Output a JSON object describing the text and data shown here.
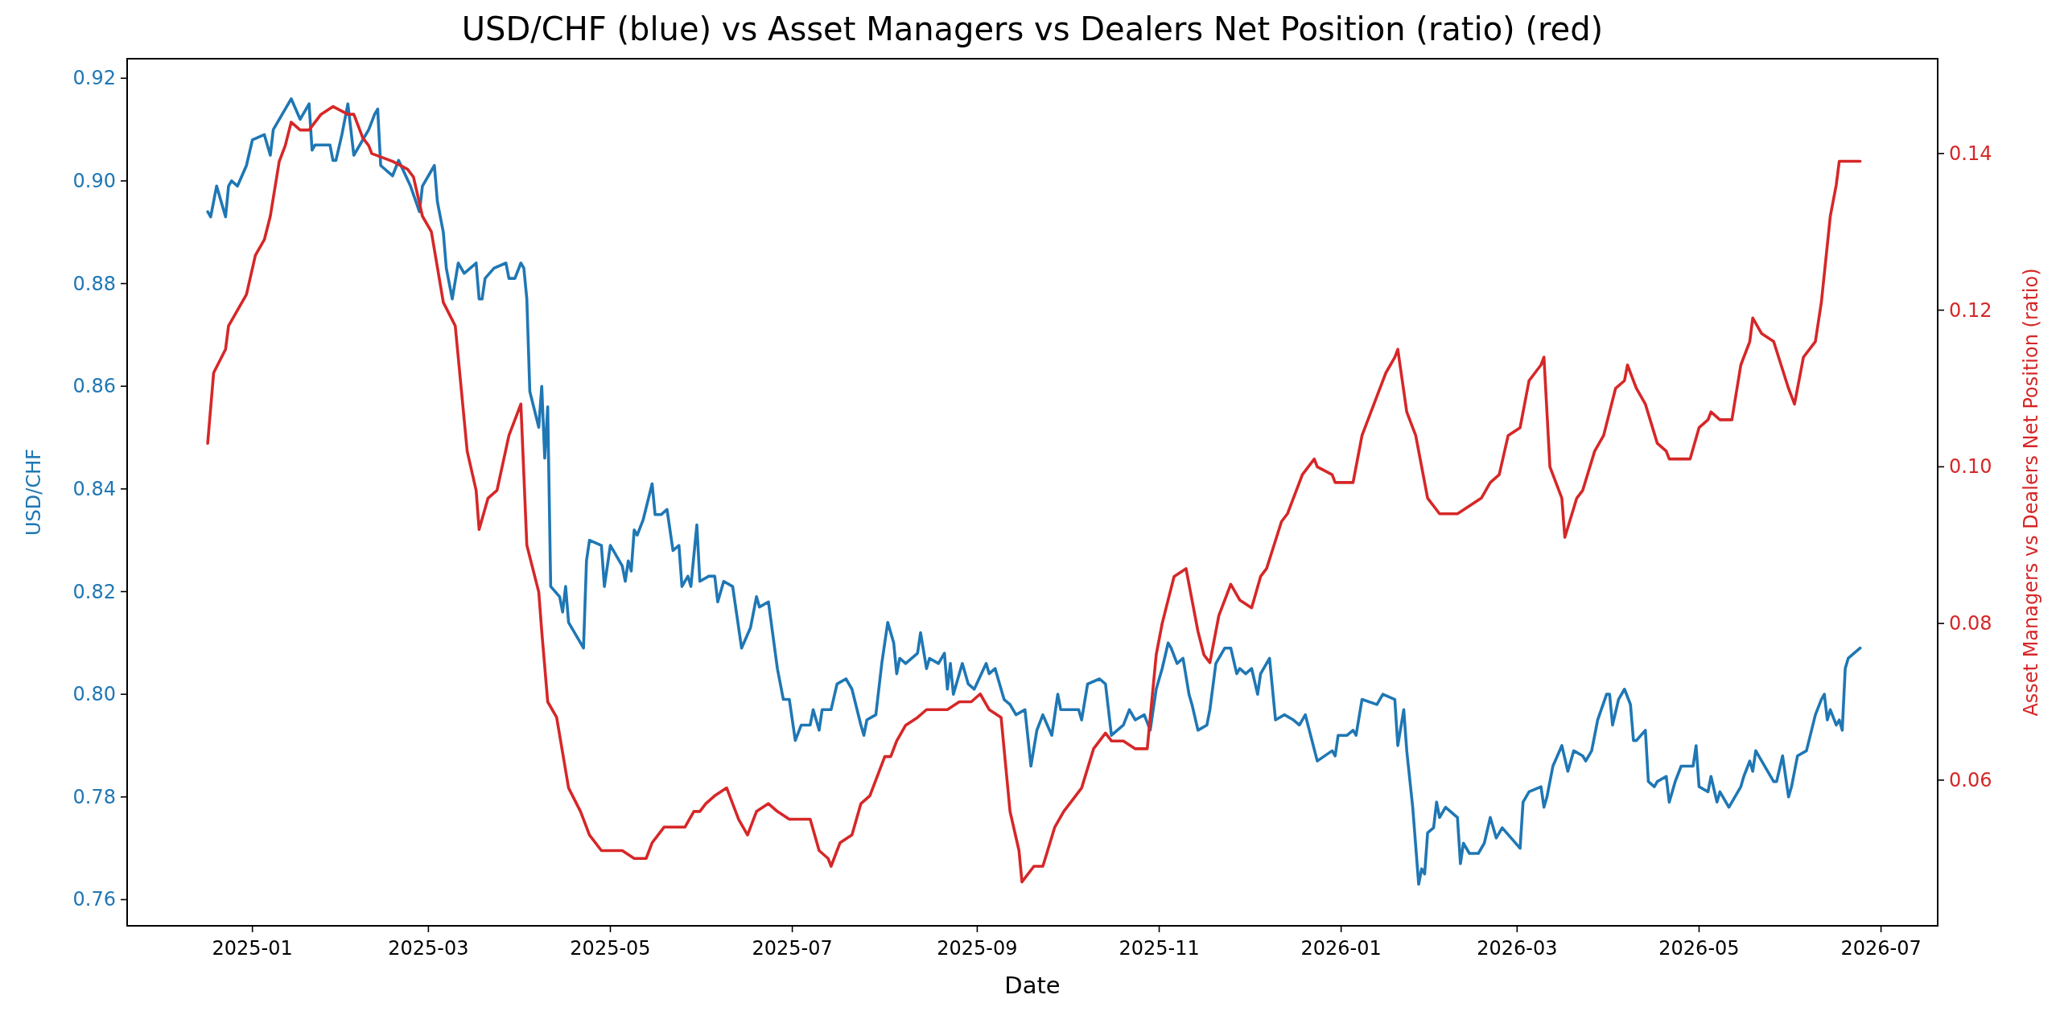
{
  "chart_data": {
    "type": "line",
    "title": "USD/CHF (blue) vs Asset Managers vs Dealers Net Position (ratio) (red)",
    "xlabel": "Date",
    "ylabel": "USD/CHF",
    "y2label": "Asset Managers vs Dealers Net Position (ratio)",
    "xlim": [
      "2024-11-20",
      "2026-07-20"
    ],
    "xticks": [
      "2025-01",
      "2025-03",
      "2025-05",
      "2025-07",
      "2025-09",
      "2025-11",
      "2026-01",
      "2026-03",
      "2026-05",
      "2026-07"
    ],
    "ylim": [
      0.7549,
      0.9238
    ],
    "yticks": [
      0.76,
      0.78,
      {
        "value": 0.8,
        "label": "0.80"
      },
      0.82,
      0.84,
      0.86,
      0.88,
      {
        "value": 0.9,
        "label": "0.90"
      },
      0.92
    ],
    "y2lim": [
      0.0414,
      0.1521
    ],
    "y2ticks": [
      0.06,
      0.08,
      {
        "value": 0.1,
        "label": "0.10"
      },
      0.12,
      0.14
    ],
    "series": [
      {
        "axis": "y",
        "color": "#1f77b4",
        "x": [
          "2024-12-17",
          "2024-12-18",
          "2024-12-20",
          "2024-12-23",
          "2024-12-24",
          "2024-12-25",
          "2024-12-27",
          "2024-12-30",
          "2025-01-01",
          "2025-01-05",
          "2025-01-07",
          "2025-01-08",
          "2025-01-10",
          "2025-01-14",
          "2025-01-17",
          "2025-01-20",
          "2025-01-21",
          "2025-01-22",
          "2025-01-24",
          "2025-01-27",
          "2025-01-28",
          "2025-01-29",
          "2025-01-31",
          "2025-02-02",
          "2025-02-04",
          "2025-02-09",
          "2025-02-11",
          "2025-02-12",
          "2025-02-13",
          "2025-02-17",
          "2025-02-19",
          "2025-02-23",
          "2025-02-26",
          "2025-02-27",
          "2025-03-03",
          "2025-03-04",
          "2025-03-06",
          "2025-03-07",
          "2025-03-09",
          "2025-03-11",
          "2025-03-13",
          "2025-03-17",
          "2025-03-18",
          "2025-03-19",
          "2025-03-20",
          "2025-03-23",
          "2025-03-27",
          "2025-03-28",
          "2025-03-30",
          "2025-04-01",
          "2025-04-02",
          "2025-04-03",
          "2025-04-04",
          "2025-04-07",
          "2025-04-08",
          "2025-04-09",
          "2025-04-10",
          "2025-04-11",
          "2025-04-14",
          "2025-04-15",
          "2025-04-16",
          "2025-04-17",
          "2025-04-22",
          "2025-04-23",
          "2025-04-24",
          "2025-04-28",
          "2025-04-29",
          "2025-05-01",
          "2025-05-03",
          "2025-05-05",
          "2025-05-06",
          "2025-05-07",
          "2025-05-08",
          "2025-05-09",
          "2025-05-10",
          "2025-05-12",
          "2025-05-15",
          "2025-05-16",
          "2025-05-18",
          "2025-05-20",
          "2025-05-22",
          "2025-05-24",
          "2025-05-25",
          "2025-05-27",
          "2025-05-28",
          "2025-05-30",
          "2025-05-31",
          "2025-06-03",
          "2025-06-05",
          "2025-06-06",
          "2025-06-08",
          "2025-06-11",
          "2025-06-14",
          "2025-06-17",
          "2025-06-19",
          "2025-06-20",
          "2025-06-23",
          "2025-06-26",
          "2025-06-28",
          "2025-06-30",
          "2025-07-02",
          "2025-07-04",
          "2025-07-07",
          "2025-07-08",
          "2025-07-10",
          "2025-07-11",
          "2025-07-14",
          "2025-07-16",
          "2025-07-19",
          "2025-07-21",
          "2025-07-24",
          "2025-07-25",
          "2025-07-26",
          "2025-07-29",
          "2025-07-31",
          "2025-08-02",
          "2025-08-04",
          "2025-08-05",
          "2025-08-06",
          "2025-08-08",
          "2025-08-12",
          "2025-08-13",
          "2025-08-15",
          "2025-08-16",
          "2025-08-19",
          "2025-08-21",
          "2025-08-22",
          "2025-08-23",
          "2025-08-24",
          "2025-08-27",
          "2025-08-29",
          "2025-08-31",
          "2025-09-04",
          "2025-09-05",
          "2025-09-07",
          "2025-09-10",
          "2025-09-12",
          "2025-09-14",
          "2025-09-17",
          "2025-09-19",
          "2025-09-21",
          "2025-09-23",
          "2025-09-26",
          "2025-09-28",
          "2025-09-29",
          "2025-10-02",
          "2025-10-05",
          "2025-10-06",
          "2025-10-08",
          "2025-10-12",
          "2025-10-14",
          "2025-10-16",
          "2025-10-20",
          "2025-10-22",
          "2025-10-24",
          "2025-10-27",
          "2025-10-29",
          "2025-10-31",
          "2025-11-02",
          "2025-11-04",
          "2025-11-05",
          "2025-11-07",
          "2025-11-09",
          "2025-11-11",
          "2025-11-12",
          "2025-11-14",
          "2025-11-17",
          "2025-11-18",
          "2025-11-20",
          "2025-11-23",
          "2025-11-25",
          "2025-11-27",
          "2025-11-28",
          "2025-11-30",
          "2025-12-02",
          "2025-12-04",
          "2025-12-05",
          "2025-12-08",
          "2025-12-10",
          "2025-12-13",
          "2025-12-16",
          "2025-12-18",
          "2025-12-20",
          "2025-12-24",
          "2025-12-29",
          "2025-12-30",
          "2025-12-31",
          "2026-01-03",
          "2026-01-05",
          "2026-01-06",
          "2026-01-08",
          "2026-01-13",
          "2026-01-15",
          "2026-01-19",
          "2026-01-20",
          "2026-01-22",
          "2026-01-23",
          "2026-01-25",
          "2026-01-27",
          "2026-01-28",
          "2026-01-29",
          "2026-01-30",
          "2026-02-01",
          "2026-02-02",
          "2026-02-03",
          "2026-02-05",
          "2026-02-09",
          "2026-02-10",
          "2026-02-11",
          "2026-02-13",
          "2026-02-16",
          "2026-02-18",
          "2026-02-20",
          "2026-02-22",
          "2026-02-24",
          "2026-02-27",
          "2026-03-02",
          "2026-03-03",
          "2026-03-05",
          "2026-03-09",
          "2026-03-10",
          "2026-03-11",
          "2026-03-13",
          "2026-03-16",
          "2026-03-18",
          "2026-03-20",
          "2026-03-23",
          "2026-03-24",
          "2026-03-26",
          "2026-03-28",
          "2026-03-31",
          "2026-04-01",
          "2026-04-02",
          "2026-04-04",
          "2026-04-06",
          "2026-04-08",
          "2026-04-09",
          "2026-04-10",
          "2026-04-13",
          "2026-04-14",
          "2026-04-16",
          "2026-04-17",
          "2026-04-20",
          "2026-04-21",
          "2026-04-23",
          "2026-04-25",
          "2026-04-27",
          "2026-04-29",
          "2026-04-30",
          "2026-05-01",
          "2026-05-04",
          "2026-05-05",
          "2026-05-07",
          "2026-05-08",
          "2026-05-11",
          "2026-05-13",
          "2026-05-15",
          "2026-05-16",
          "2026-05-18",
          "2026-05-19",
          "2026-05-20",
          "2026-05-22",
          "2026-05-24",
          "2026-05-26",
          "2026-05-27",
          "2026-05-29",
          "2026-05-31",
          "2026-06-01",
          "2026-06-03",
          "2026-06-06",
          "2026-06-09",
          "2026-06-11",
          "2026-06-12",
          "2026-06-13",
          "2026-06-14",
          "2026-06-16",
          "2026-06-17",
          "2026-06-18",
          "2026-06-19",
          "2026-06-20",
          "2026-06-24"
        ],
        "values": [
          0.894,
          0.893,
          0.899,
          0.893,
          0.899,
          0.9,
          0.899,
          0.903,
          0.908,
          0.909,
          0.905,
          0.91,
          0.912,
          0.916,
          0.912,
          0.915,
          0.906,
          0.907,
          0.907,
          0.907,
          0.904,
          0.904,
          0.909,
          0.915,
          0.905,
          0.91,
          0.913,
          0.914,
          0.903,
          0.901,
          0.904,
          0.899,
          0.894,
          0.899,
          0.903,
          0.896,
          0.89,
          0.883,
          0.877,
          0.884,
          0.882,
          0.884,
          0.877,
          0.877,
          0.881,
          0.883,
          0.884,
          0.881,
          0.881,
          0.884,
          0.883,
          0.877,
          0.859,
          0.852,
          0.86,
          0.846,
          0.856,
          0.821,
          0.819,
          0.816,
          0.821,
          0.814,
          0.809,
          0.826,
          0.83,
          0.829,
          0.821,
          0.829,
          0.827,
          0.825,
          0.822,
          0.826,
          0.824,
          0.832,
          0.831,
          0.834,
          0.841,
          0.835,
          0.835,
          0.836,
          0.828,
          0.829,
          0.821,
          0.823,
          0.821,
          0.833,
          0.822,
          0.823,
          0.823,
          0.818,
          0.822,
          0.821,
          0.809,
          0.813,
          0.819,
          0.817,
          0.818,
          0.805,
          0.799,
          0.799,
          0.791,
          0.794,
          0.794,
          0.797,
          0.793,
          0.797,
          0.797,
          0.802,
          0.803,
          0.801,
          0.794,
          0.792,
          0.795,
          0.796,
          0.806,
          0.814,
          0.81,
          0.804,
          0.807,
          0.806,
          0.808,
          0.812,
          0.805,
          0.807,
          0.806,
          0.808,
          0.801,
          0.806,
          0.8,
          0.806,
          0.802,
          0.801,
          0.806,
          0.804,
          0.805,
          0.799,
          0.798,
          0.796,
          0.797,
          0.786,
          0.793,
          0.796,
          0.792,
          0.8,
          0.797,
          0.797,
          0.797,
          0.795,
          0.802,
          0.803,
          0.802,
          0.792,
          0.794,
          0.797,
          0.795,
          0.796,
          0.793,
          0.801,
          0.805,
          0.81,
          0.809,
          0.806,
          0.807,
          0.8,
          0.798,
          0.793,
          0.794,
          0.797,
          0.806,
          0.809,
          0.809,
          0.804,
          0.805,
          0.804,
          0.805,
          0.8,
          0.804,
          0.807,
          0.795,
          0.796,
          0.795,
          0.794,
          0.796,
          0.787,
          0.789,
          0.788,
          0.792,
          0.792,
          0.793,
          0.792,
          0.799,
          0.798,
          0.8,
          0.799,
          0.79,
          0.797,
          0.789,
          0.778,
          0.763,
          0.766,
          0.765,
          0.773,
          0.774,
          0.779,
          0.776,
          0.778,
          0.776,
          0.767,
          0.771,
          0.769,
          0.769,
          0.771,
          0.776,
          0.772,
          0.774,
          0.772,
          0.77,
          0.779,
          0.781,
          0.782,
          0.778,
          0.78,
          0.786,
          0.79,
          0.785,
          0.789,
          0.788,
          0.787,
          0.789,
          0.795,
          0.8,
          0.8,
          0.794,
          0.799,
          0.801,
          0.798,
          0.791,
          0.791,
          0.793,
          0.783,
          0.782,
          0.783,
          0.784,
          0.779,
          0.783,
          0.786,
          0.786,
          0.786,
          0.79,
          0.782,
          0.781,
          0.784,
          0.779,
          0.781,
          0.778,
          0.78,
          0.782,
          0.784,
          0.787,
          0.785,
          0.789,
          0.787,
          0.785,
          0.783,
          0.783,
          0.788,
          0.78,
          0.782,
          0.788,
          0.789,
          0.796,
          0.799,
          0.8,
          0.795,
          0.797,
          0.794,
          0.795,
          0.793,
          0.805,
          0.807,
          0.809
        ]
      },
      {
        "axis": "y2",
        "color": "#d62728",
        "x": [
          "2024-12-17",
          "2024-12-19",
          "2024-12-23",
          "2024-12-24",
          "2024-12-27",
          "2024-12-30",
          "2025-01-02",
          "2025-01-05",
          "2025-01-07",
          "2025-01-10",
          "2025-01-12",
          "2025-01-14",
          "2025-01-17",
          "2025-01-20",
          "2025-01-24",
          "2025-01-28",
          "2025-02-02",
          "2025-02-04",
          "2025-02-07",
          "2025-02-09",
          "2025-02-10",
          "2025-02-17",
          "2025-02-22",
          "2025-02-24",
          "2025-02-27",
          "2025-03-02",
          "2025-03-06",
          "2025-03-10",
          "2025-03-14",
          "2025-03-17",
          "2025-03-18",
          "2025-03-21",
          "2025-03-24",
          "2025-03-28",
          "2025-04-01",
          "2025-04-03",
          "2025-04-07",
          "2025-04-08",
          "2025-04-10",
          "2025-04-13",
          "2025-04-17",
          "2025-04-21",
          "2025-04-24",
          "2025-04-28",
          "2025-05-05",
          "2025-05-09",
          "2025-05-13",
          "2025-05-15",
          "2025-05-17",
          "2025-05-19",
          "2025-05-23",
          "2025-05-26",
          "2025-05-29",
          "2025-05-31",
          "2025-06-02",
          "2025-06-05",
          "2025-06-09",
          "2025-06-13",
          "2025-06-16",
          "2025-06-19",
          "2025-06-23",
          "2025-06-26",
          "2025-06-30",
          "2025-07-07",
          "2025-07-10",
          "2025-07-13",
          "2025-07-14",
          "2025-07-17",
          "2025-07-21",
          "2025-07-24",
          "2025-07-27",
          "2025-08-01",
          "2025-08-03",
          "2025-08-05",
          "2025-08-08",
          "2025-08-12",
          "2025-08-15",
          "2025-08-18",
          "2025-08-22",
          "2025-08-26",
          "2025-08-30",
          "2025-09-02",
          "2025-09-05",
          "2025-09-09",
          "2025-09-12",
          "2025-09-15",
          "2025-09-16",
          "2025-09-20",
          "2025-09-23",
          "2025-09-27",
          "2025-09-30",
          "2025-10-02",
          "2025-10-06",
          "2025-10-10",
          "2025-10-12",
          "2025-10-14",
          "2025-10-16",
          "2025-10-20",
          "2025-10-24",
          "2025-10-28",
          "2025-10-31",
          "2025-11-02",
          "2025-11-04",
          "2025-11-06",
          "2025-11-10",
          "2025-11-14",
          "2025-11-16",
          "2025-11-18",
          "2025-11-21",
          "2025-11-23",
          "2025-11-25",
          "2025-11-28",
          "2025-12-02",
          "2025-12-05",
          "2025-12-07",
          "2025-12-12",
          "2025-12-14",
          "2025-12-19",
          "2025-12-21",
          "2025-12-23",
          "2025-12-24",
          "2025-12-29",
          "2025-12-30",
          "2026-01-05",
          "2026-01-08",
          "2026-01-11",
          "2026-01-13",
          "2026-01-16",
          "2026-01-19",
          "2026-01-20",
          "2026-01-23",
          "2026-01-26",
          "2026-01-27",
          "2026-01-30",
          "2026-02-03",
          "2026-02-05",
          "2026-02-09",
          "2026-02-13",
          "2026-02-17",
          "2026-02-20",
          "2026-02-23",
          "2026-02-26",
          "2026-03-02",
          "2026-03-05",
          "2026-03-09",
          "2026-03-10",
          "2026-03-12",
          "2026-03-16",
          "2026-03-17",
          "2026-03-21",
          "2026-03-23",
          "2026-03-27",
          "2026-03-30",
          "2026-04-03",
          "2026-04-06",
          "2026-04-07",
          "2026-04-10",
          "2026-04-13",
          "2026-04-17",
          "2026-04-20",
          "2026-04-21",
          "2026-04-24",
          "2026-04-28",
          "2026-05-01",
          "2026-05-04",
          "2026-05-05",
          "2026-05-08",
          "2026-05-12",
          "2026-05-15",
          "2026-05-18",
          "2026-05-19",
          "2026-05-22",
          "2026-05-26",
          "2026-05-31",
          "2026-06-02",
          "2026-06-05",
          "2026-06-09",
          "2026-06-11",
          "2026-06-14",
          "2026-06-16",
          "2026-06-17",
          "2026-06-24"
        ],
        "values": [
          0.103,
          0.112,
          0.115,
          0.118,
          0.12,
          0.122,
          0.127,
          0.129,
          0.132,
          0.139,
          0.141,
          0.144,
          0.143,
          0.143,
          0.145,
          0.146,
          0.145,
          0.145,
          0.142,
          0.141,
          0.14,
          0.139,
          0.138,
          0.137,
          0.132,
          0.13,
          0.121,
          0.118,
          0.102,
          0.097,
          0.092,
          0.096,
          0.097,
          0.104,
          0.108,
          0.09,
          0.084,
          0.079,
          0.07,
          0.068,
          0.059,
          0.056,
          0.053,
          0.051,
          0.051,
          0.05,
          0.05,
          0.052,
          0.053,
          0.054,
          0.054,
          0.054,
          0.056,
          0.056,
          0.057,
          0.058,
          0.059,
          0.055,
          0.053,
          0.056,
          0.057,
          0.056,
          0.055,
          0.055,
          0.051,
          0.05,
          0.049,
          0.052,
          0.053,
          0.057,
          0.058,
          0.063,
          0.063,
          0.065,
          0.067,
          0.068,
          0.069,
          0.069,
          0.069,
          0.07,
          0.07,
          0.071,
          0.069,
          0.068,
          0.056,
          0.051,
          0.047,
          0.049,
          0.049,
          0.054,
          0.056,
          0.057,
          0.059,
          0.064,
          0.065,
          0.066,
          0.065,
          0.065,
          0.064,
          0.064,
          0.076,
          0.08,
          0.083,
          0.086,
          0.087,
          0.079,
          0.076,
          0.075,
          0.081,
          0.083,
          0.085,
          0.083,
          0.082,
          0.086,
          0.087,
          0.093,
          0.094,
          0.099,
          0.1,
          0.101,
          0.1,
          0.099,
          0.098,
          0.098,
          0.104,
          0.107,
          0.109,
          0.112,
          0.114,
          0.115,
          0.107,
          0.104,
          0.102,
          0.096,
          0.094,
          0.094,
          0.094,
          0.095,
          0.096,
          0.098,
          0.099,
          0.104,
          0.105,
          0.111,
          0.113,
          0.114,
          0.1,
          0.096,
          0.091,
          0.096,
          0.097,
          0.102,
          0.104,
          0.11,
          0.111,
          0.113,
          0.11,
          0.108,
          0.103,
          0.102,
          0.101,
          0.101,
          0.101,
          0.105,
          0.106,
          0.107,
          0.106,
          0.106,
          0.113,
          0.116,
          0.119,
          0.117,
          0.116,
          0.11,
          0.108,
          0.114,
          0.116,
          0.121,
          0.132,
          0.136,
          0.139,
          0.139
        ]
      }
    ]
  }
}
